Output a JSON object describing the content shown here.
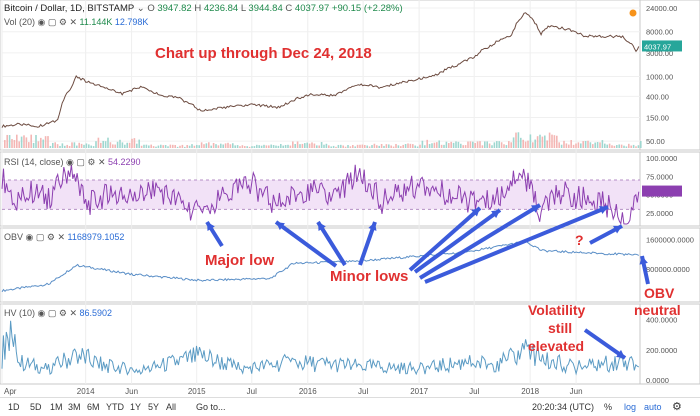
{
  "header": {
    "title": "Bitcoin / Dollar, 1D, BITSTAMP",
    "ohlc": {
      "o": "3947.82",
      "h": "4236.84",
      "l": "3944.84",
      "c": "4037.97",
      "chg": "+90.15 (+2.28%)"
    },
    "ohlc_labels": {
      "o": "O",
      "h": "H",
      "l": "L",
      "c": "C"
    },
    "vol_label": "Vol (20)",
    "vol_values": [
      "11.144K",
      "12.798K"
    ],
    "price_badge": "4037.97"
  },
  "rsi": {
    "label": "RSI (14, close)",
    "value": "54.2290"
  },
  "obv": {
    "label": "OBV",
    "value": "1168979.1052"
  },
  "hv": {
    "label": "HV (10)",
    "value": "86.5902"
  },
  "annotations": {
    "title": "Chart up through Dec 24, 2018",
    "major_low": "Major low",
    "minor_lows": "Minor lows",
    "question": "?",
    "obv_neutral_1": "OBV",
    "obv_neutral_2": "neutral",
    "vol_1": "Volatility",
    "vol_2": "still",
    "vol_3": "elevated"
  },
  "toolbar": {
    "timeframes": [
      "1D",
      "5D",
      "1M",
      "3M",
      "6M",
      "YTD",
      "1Y",
      "5Y",
      "All"
    ],
    "goto": "Go to...",
    "clock": "20:20:34 (UTC)",
    "pct": "%",
    "log": "log",
    "auto": "auto",
    "settings_icon": "gear-icon"
  },
  "colors": {
    "price_up": "#26a69a",
    "price_down": "#ef5350",
    "rsi": "#8c3fb0",
    "obv": "#5b8fc7",
    "hv": "#5b9bc4",
    "annotation": "#e03030",
    "arrow": "#3b5bdb"
  },
  "chart_data": [
    {
      "type": "line",
      "name": "price",
      "yscale": "log",
      "ylim": [
        40,
        24000
      ],
      "yticks": [
        "24000.00",
        "8000.00",
        "3000.00",
        "1000.00",
        "400.00",
        "150.00",
        "50.00"
      ],
      "xticks": [
        "Apr",
        "2014",
        "Jun",
        "2015",
        "Jul",
        "2016",
        "Jul",
        "2017",
        "Jul",
        "2018",
        "Jun"
      ],
      "x": [
        "2013-04-01",
        "2013-06-01",
        "2013-08-01",
        "2013-10-01",
        "2013-11-15",
        "2013-12-01",
        "2014-01-01",
        "2014-03-01",
        "2014-05-01",
        "2014-07-01",
        "2014-09-01",
        "2014-11-01",
        "2015-01-15",
        "2015-04-01",
        "2015-07-01",
        "2015-10-01",
        "2016-01-01",
        "2016-04-01",
        "2016-06-15",
        "2016-09-01",
        "2017-01-01",
        "2017-03-01",
        "2017-05-15",
        "2017-07-01",
        "2017-09-01",
        "2017-11-01",
        "2017-12-17",
        "2018-02-06",
        "2018-03-01",
        "2018-05-01",
        "2018-07-01",
        "2018-09-01",
        "2018-11-01",
        "2018-12-15",
        "2018-12-24"
      ],
      "y": [
        100,
        110,
        100,
        130,
        600,
        1000,
        800,
        600,
        450,
        620,
        420,
        370,
        200,
        240,
        270,
        240,
        430,
        420,
        700,
        600,
        900,
        1100,
        1800,
        2500,
        4500,
        7000,
        19500,
        7000,
        10500,
        9000,
        6500,
        6500,
        6300,
        3400,
        4038
      ]
    },
    {
      "type": "bar",
      "name": "volume",
      "ylim": [
        0,
        1
      ],
      "x": [
        "2013-04-01",
        "2013-09-01",
        "2014-02-01",
        "2014-07-01",
        "2014-12-01",
        "2015-05-01",
        "2015-10-01",
        "2016-03-01",
        "2016-08-01",
        "2017-01-01",
        "2017-06-01",
        "2017-11-01",
        "2018-04-01",
        "2018-09-01",
        "2018-12-24"
      ],
      "values": [
        0.6,
        0.25,
        0.45,
        0.15,
        0.25,
        0.15,
        0.3,
        0.15,
        0.2,
        0.35,
        0.3,
        0.7,
        0.35,
        0.2,
        0.5
      ]
    },
    {
      "type": "line",
      "name": "RSI (14, close)",
      "ylim": [
        10,
        100
      ],
      "yticks": [
        "100.0000",
        "75.0000",
        "50.0000",
        "25.0000"
      ],
      "bands": [
        30,
        70
      ],
      "x": [
        "2013-04-01",
        "2013-05-15",
        "2013-07-01",
        "2013-09-01",
        "2013-11-15",
        "2014-01-01",
        "2014-03-15",
        "2014-06-01",
        "2014-08-15",
        "2015-01-15",
        "2015-04-01",
        "2015-07-01",
        "2015-09-15",
        "2016-01-01",
        "2016-04-01",
        "2016-06-15",
        "2016-09-01",
        "2017-01-01",
        "2017-04-01",
        "2017-07-15",
        "2017-09-15",
        "2017-12-01",
        "2018-02-06",
        "2018-04-01",
        "2018-06-15",
        "2018-09-01",
        "2018-11-20",
        "2018-12-24"
      ],
      "y": [
        75,
        40,
        55,
        45,
        88,
        35,
        50,
        42,
        60,
        22,
        48,
        65,
        35,
        58,
        45,
        80,
        40,
        65,
        50,
        38,
        45,
        85,
        25,
        55,
        45,
        38,
        15,
        54
      ]
    },
    {
      "type": "line",
      "name": "OBV",
      "ylim": [
        0,
        1700000
      ],
      "yticks": [
        "1600000.0000",
        "800000.0000"
      ],
      "x": [
        "2013-04-01",
        "2013-09-01",
        "2013-12-01",
        "2014-06-01",
        "2015-01-15",
        "2015-09-01",
        "2015-11-15",
        "2016-06-01",
        "2017-01-01",
        "2017-06-01",
        "2017-12-17",
        "2018-02-06",
        "2018-06-01",
        "2018-11-01",
        "2018-12-24"
      ],
      "y": [
        200000,
        380000,
        900000,
        650000,
        480000,
        540000,
        950000,
        1000000,
        1150000,
        1250000,
        1550000,
        1300000,
        1250000,
        1200000,
        1169000
      ]
    },
    {
      "type": "line",
      "name": "HV (10)",
      "ylim": [
        0,
        450
      ],
      "yticks": [
        "400.0000",
        "200.0000",
        "0.0000"
      ],
      "x": [
        "2013-04-01",
        "2013-04-20",
        "2013-06-01",
        "2013-09-01",
        "2013-12-01",
        "2014-03-01",
        "2014-07-01",
        "2015-01-15",
        "2015-06-01",
        "2015-11-01",
        "2016-06-15",
        "2017-01-01",
        "2017-06-01",
        "2017-09-15",
        "2017-12-17",
        "2018-02-06",
        "2018-06-01",
        "2018-11-20",
        "2018-12-24"
      ],
      "y": [
        150,
        330,
        110,
        70,
        160,
        90,
        60,
        150,
        70,
        110,
        90,
        70,
        110,
        100,
        180,
        130,
        80,
        120,
        87
      ]
    }
  ]
}
